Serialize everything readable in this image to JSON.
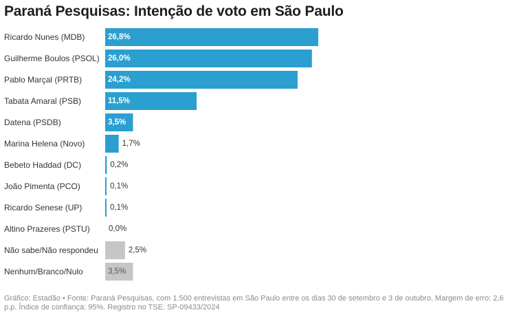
{
  "title": "Paraná Pesquisas: Intenção de voto em São Paulo",
  "footer": "Gráfico: Estadão • Fonte: Paraná Pesquisas, com 1.500 entrevistas em São Paulo entre os dias 30 de setembro e 3 de outubro. Margem de erro: 2,6 p.p. Índice de confiança: 95%. Registro no TSE: SP-09433/2024",
  "colors": {
    "candidate": "#2a9fd0",
    "other": "#c6c6c6",
    "label_inside": "#ffffff",
    "label_other": "#555555",
    "label_outside": "#333333"
  },
  "chart_data": {
    "type": "bar",
    "orientation": "horizontal",
    "categories": [
      "Ricardo Nunes (MDB)",
      "Guilherme Boulos (PSOL)",
      "Pablo Marçal (PRTB)",
      "Tabata Amaral (PSB)",
      "Datena (PSDB)",
      "Marina Helena (Novo)",
      "Bebeto Haddad (DC)",
      "João Pimenta (PCO)",
      "Ricardo Senese (UP)",
      "Altino Prazeres (PSTU)",
      "Não sabe/Não respondeu",
      "Nenhum/Branco/Nulo"
    ],
    "values": [
      26.8,
      26.0,
      24.2,
      11.5,
      3.5,
      1.7,
      0.2,
      0.1,
      0.1,
      0.0,
      2.5,
      3.5
    ],
    "value_labels": [
      "26,8%",
      "26,0%",
      "24,2%",
      "11,5%",
      "3,5%",
      "1,7%",
      "0,2%",
      "0,1%",
      "0,1%",
      "0,0%",
      "2,5%",
      "3,5%"
    ],
    "groups": [
      "candidate",
      "candidate",
      "candidate",
      "candidate",
      "candidate",
      "candidate",
      "candidate",
      "candidate",
      "candidate",
      "candidate",
      "other",
      "other"
    ],
    "xlim": [
      0,
      26.8
    ],
    "grid": false,
    "legend": "none"
  }
}
